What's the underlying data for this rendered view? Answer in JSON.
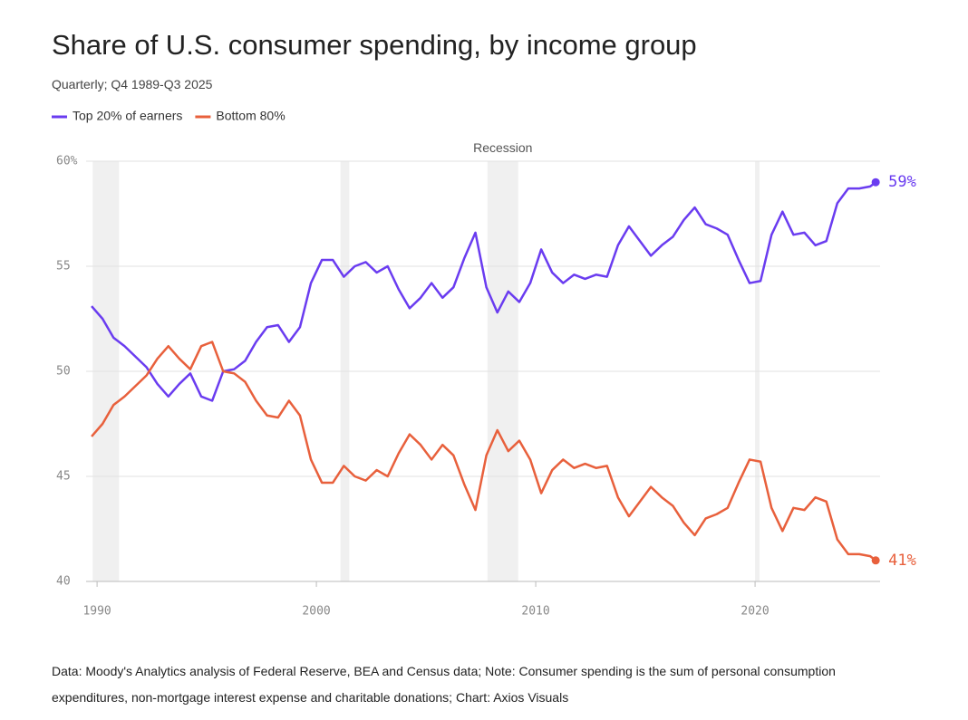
{
  "chart_data": {
    "type": "line",
    "title": "Share of U.S. consumer spending, by income group",
    "subtitle": "Quarterly; Q4 1989-Q3 2025",
    "note_lines": [
      "Data: Moody's Analytics analysis of Federal Reserve, BEA and Census data; Note: Consumer spending is the sum of personal consumption",
      "expenditures, non-mortgage interest expense and charitable donations; Chart: Axios Visuals"
    ],
    "recession_label": "Recession",
    "recessions": [
      [
        1989.8,
        1991.0
      ],
      [
        2001.1,
        2001.5
      ],
      [
        2007.8,
        2009.2
      ],
      [
        2020.0,
        2020.2
      ]
    ],
    "x": [
      1989.75,
      1990.25,
      1990.75,
      1991.25,
      1991.75,
      1992.25,
      1992.75,
      1993.25,
      1993.75,
      1994.25,
      1994.75,
      1995.25,
      1995.75,
      1996.25,
      1996.75,
      1997.25,
      1997.75,
      1998.25,
      1998.75,
      1999.25,
      1999.75,
      2000.25,
      2000.75,
      2001.25,
      2001.75,
      2002.25,
      2002.75,
      2003.25,
      2003.75,
      2004.25,
      2004.75,
      2005.25,
      2005.75,
      2006.25,
      2006.75,
      2007.25,
      2007.75,
      2008.25,
      2008.75,
      2009.25,
      2009.75,
      2010.25,
      2010.75,
      2011.25,
      2011.75,
      2012.25,
      2012.75,
      2013.25,
      2013.75,
      2014.25,
      2014.75,
      2015.25,
      2015.75,
      2016.25,
      2016.75,
      2017.25,
      2017.75,
      2018.25,
      2018.75,
      2019.25,
      2019.75,
      2020.25,
      2020.75,
      2021.25,
      2021.75,
      2022.25,
      2022.75,
      2023.25,
      2023.75,
      2024.25,
      2024.75,
      2025.25,
      2025.5
    ],
    "series": [
      {
        "name": "Top 20% of earners",
        "color": "#6a3cf0",
        "values": [
          53.1,
          52.5,
          51.6,
          51.2,
          50.7,
          50.2,
          49.4,
          48.8,
          49.4,
          49.9,
          48.8,
          48.6,
          50.0,
          50.1,
          50.5,
          51.4,
          52.1,
          52.2,
          51.4,
          52.1,
          54.2,
          55.3,
          55.3,
          54.5,
          55.0,
          55.2,
          54.7,
          55.0,
          53.9,
          53.0,
          53.5,
          54.2,
          53.5,
          54.0,
          55.4,
          56.6,
          54.0,
          52.8,
          53.8,
          53.3,
          54.2,
          55.8,
          54.7,
          54.2,
          54.6,
          54.4,
          54.6,
          54.5,
          56.0,
          56.9,
          56.2,
          55.5,
          56.0,
          56.4,
          57.2,
          57.8,
          57.0,
          56.8,
          56.5,
          55.3,
          54.2,
          54.3,
          56.5,
          57.6,
          56.5,
          56.6,
          56.0,
          56.2,
          58.0,
          58.7,
          58.7,
          58.8,
          59
        ],
        "value_labels": [
          null,
          null,
          null,
          null,
          null,
          null,
          null,
          null,
          null,
          null,
          null,
          null,
          null,
          null,
          null,
          null,
          null,
          null,
          null,
          null,
          null,
          null,
          null,
          null,
          null,
          null,
          null,
          null,
          null,
          null,
          null,
          null,
          null,
          null,
          null,
          null,
          null,
          null,
          null,
          null,
          null,
          null,
          null,
          null,
          null,
          null,
          null,
          null,
          null,
          null,
          null,
          null,
          null,
          null,
          null,
          null,
          null,
          null,
          null,
          null,
          null,
          null,
          null,
          null,
          null,
          null,
          null,
          null,
          null,
          null,
          null,
          null,
          "59%"
        ]
      },
      {
        "name": "Bottom 80%",
        "color": "#e8603c",
        "values": [
          46.9,
          47.5,
          48.4,
          48.8,
          49.3,
          49.8,
          50.6,
          51.2,
          50.6,
          50.1,
          51.2,
          51.4,
          50.0,
          49.9,
          49.5,
          48.6,
          47.9,
          47.8,
          48.6,
          47.9,
          45.8,
          44.7,
          44.7,
          45.5,
          45.0,
          44.8,
          45.3,
          45.0,
          46.1,
          47.0,
          46.5,
          45.8,
          46.5,
          46.0,
          44.6,
          43.4,
          46.0,
          47.2,
          46.2,
          46.7,
          45.8,
          44.2,
          45.3,
          45.8,
          45.4,
          45.6,
          45.4,
          45.5,
          44.0,
          43.1,
          43.8,
          44.5,
          44.0,
          43.6,
          42.8,
          42.2,
          43.0,
          43.2,
          43.5,
          44.7,
          45.8,
          45.7,
          43.5,
          42.4,
          43.5,
          43.4,
          44.0,
          43.8,
          42.0,
          41.3,
          41.3,
          41.2,
          41
        ],
        "value_labels": [
          null,
          null,
          null,
          null,
          null,
          null,
          null,
          null,
          null,
          null,
          null,
          null,
          null,
          null,
          null,
          null,
          null,
          null,
          null,
          null,
          null,
          null,
          null,
          null,
          null,
          null,
          null,
          null,
          null,
          null,
          null,
          null,
          null,
          null,
          null,
          null,
          null,
          null,
          null,
          null,
          null,
          null,
          null,
          null,
          null,
          null,
          null,
          null,
          null,
          null,
          null,
          null,
          null,
          null,
          null,
          null,
          null,
          null,
          null,
          null,
          null,
          null,
          null,
          null,
          null,
          null,
          null,
          null,
          null,
          null,
          null,
          null,
          "41%"
        ]
      }
    ],
    "xlim": [
      1989.5,
      2025.7
    ],
    "xticks": [
      1990,
      2000,
      2010,
      2020
    ],
    "ylim": [
      40,
      60
    ],
    "yticks": [
      40,
      45,
      50,
      55,
      {
        "value": 60,
        "label": "60%"
      }
    ],
    "grid": true
  }
}
